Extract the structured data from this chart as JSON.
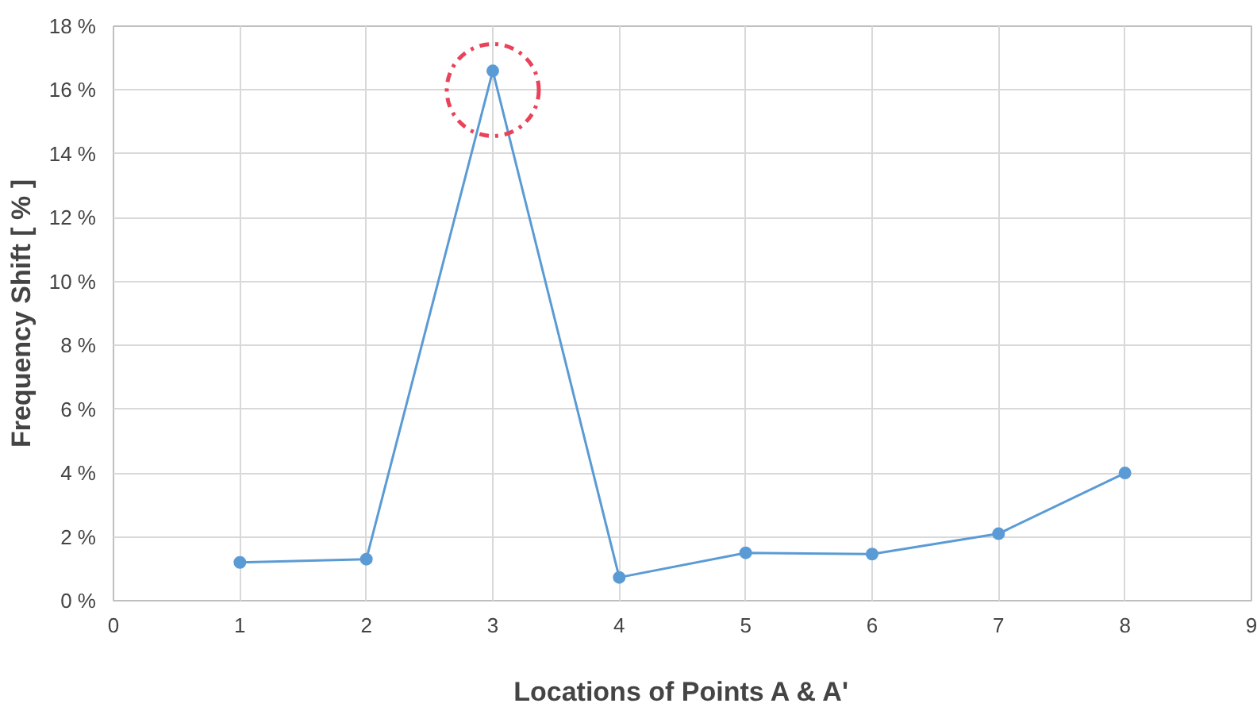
{
  "chart_data": {
    "type": "line",
    "xlabel": "Locations of Points A & A'",
    "ylabel": "Frequency Shift [ % ]",
    "x": [
      1,
      2,
      3,
      4,
      5,
      6,
      7,
      8
    ],
    "series": [
      {
        "color": "#5b9bd5",
        "values": [
          1.2,
          1.3,
          16.6,
          0.73,
          1.5,
          1.46,
          2.1,
          4.0
        ]
      }
    ],
    "xlim": [
      0,
      9
    ],
    "xticks": [
      0,
      1,
      2,
      3,
      4,
      5,
      6,
      7,
      8,
      9
    ],
    "ylim": [
      0,
      18
    ],
    "yticks": [
      {
        "value": 0,
        "label": "0 %"
      },
      {
        "value": 2,
        "label": "2 %"
      },
      {
        "value": 4,
        "label": "4 %"
      },
      {
        "value": 6,
        "label": "6 %"
      },
      {
        "value": 8,
        "label": "8 %"
      },
      {
        "value": 10,
        "label": "10 %"
      },
      {
        "value": 12,
        "label": "12 %"
      },
      {
        "value": 14,
        "label": "14 %"
      },
      {
        "value": 16,
        "label": "16 %"
      },
      {
        "value": 18,
        "label": "18 %"
      }
    ],
    "grid": true,
    "marker": "circle",
    "line_style": "solid"
  }
}
